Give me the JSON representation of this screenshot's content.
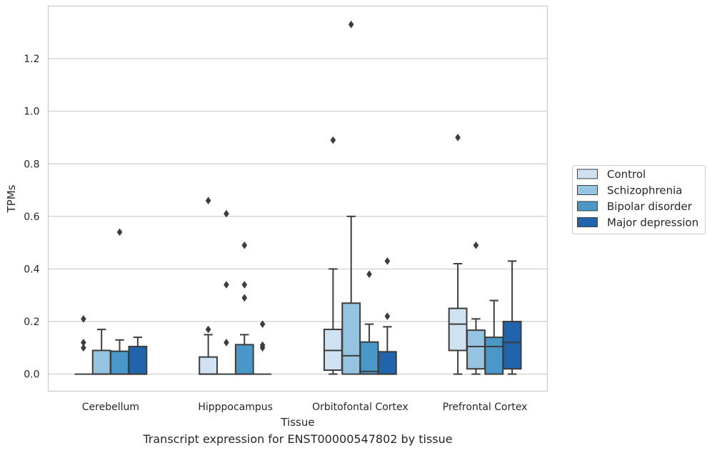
{
  "caption": "Transcript expression for ENST00000547802 by tissue",
  "chart_data": {
    "type": "box",
    "xlabel": "Tissue",
    "ylabel": "TPMs",
    "ylim": [
      -0.065,
      1.4
    ],
    "yticks": [
      0.0,
      0.2,
      0.4,
      0.6,
      0.8,
      1.0,
      1.2
    ],
    "ytick_labels": [
      "0.0",
      "0.2",
      "0.4",
      "0.6",
      "0.8",
      "1.0",
      "1.2"
    ],
    "grid": true,
    "legend_position": "right",
    "categories": [
      "Cerebellum",
      "Hipppocampus",
      "Orbitofontal Cortex",
      "Prefrontal Cortex"
    ],
    "series": [
      {
        "name": "Control",
        "color": "#d0e1f2",
        "boxes": [
          {
            "q1": 0.0,
            "median": 0.0,
            "q3": 0.0,
            "whisker_low": 0.0,
            "whisker_high": 0.0,
            "outliers": [
              0.21,
              0.12,
              0.1
            ]
          },
          {
            "q1": 0.0,
            "median": 0.0,
            "q3": 0.065,
            "whisker_low": 0.0,
            "whisker_high": 0.15,
            "outliers": [
              0.66,
              0.17
            ]
          },
          {
            "q1": 0.015,
            "median": 0.09,
            "q3": 0.17,
            "whisker_low": 0.0,
            "whisker_high": 0.4,
            "outliers": [
              0.89
            ]
          },
          {
            "q1": 0.09,
            "median": 0.19,
            "q3": 0.25,
            "whisker_low": 0.0,
            "whisker_high": 0.42,
            "outliers": [
              0.9
            ]
          }
        ]
      },
      {
        "name": "Schizophrenia",
        "color": "#94c4df",
        "boxes": [
          {
            "q1": 0.0,
            "median": 0.0,
            "q3": 0.09,
            "whisker_low": 0.0,
            "whisker_high": 0.17,
            "outliers": []
          },
          {
            "q1": 0.0,
            "median": 0.0,
            "q3": 0.0,
            "whisker_low": 0.0,
            "whisker_high": 0.0,
            "outliers": [
              0.61,
              0.34,
              0.12
            ]
          },
          {
            "q1": 0.0,
            "median": 0.07,
            "q3": 0.27,
            "whisker_low": 0.0,
            "whisker_high": 0.6,
            "outliers": [
              1.33
            ]
          },
          {
            "q1": 0.02,
            "median": 0.105,
            "q3": 0.167,
            "whisker_low": 0.0,
            "whisker_high": 0.21,
            "outliers": [
              0.49
            ]
          }
        ]
      },
      {
        "name": "Bipolar disorder",
        "color": "#4a98c9",
        "boxes": [
          {
            "q1": 0.0,
            "median": 0.0,
            "q3": 0.087,
            "whisker_low": 0.0,
            "whisker_high": 0.13,
            "outliers": [
              0.54
            ]
          },
          {
            "q1": 0.0,
            "median": 0.0,
            "q3": 0.112,
            "whisker_low": 0.0,
            "whisker_high": 0.15,
            "outliers": [
              0.49,
              0.34,
              0.29
            ]
          },
          {
            "q1": 0.0,
            "median": 0.01,
            "q3": 0.122,
            "whisker_low": 0.0,
            "whisker_high": 0.19,
            "outliers": [
              0.38
            ]
          },
          {
            "q1": 0.0,
            "median": 0.105,
            "q3": 0.14,
            "whisker_low": 0.0,
            "whisker_high": 0.28,
            "outliers": []
          }
        ]
      },
      {
        "name": "Major depression",
        "color": "#2164ab",
        "boxes": [
          {
            "q1": 0.0,
            "median": 0.0,
            "q3": 0.105,
            "whisker_low": 0.0,
            "whisker_high": 0.14,
            "outliers": []
          },
          {
            "q1": 0.0,
            "median": 0.0,
            "q3": 0.0,
            "whisker_low": 0.0,
            "whisker_high": 0.0,
            "outliers": [
              0.19,
              0.11,
              0.1
            ]
          },
          {
            "q1": 0.0,
            "median": 0.0,
            "q3": 0.085,
            "whisker_low": 0.0,
            "whisker_high": 0.18,
            "outliers": [
              0.43,
              0.22
            ]
          },
          {
            "q1": 0.02,
            "median": 0.12,
            "q3": 0.2,
            "whisker_low": 0.0,
            "whisker_high": 0.43,
            "outliers": []
          }
        ]
      }
    ]
  }
}
